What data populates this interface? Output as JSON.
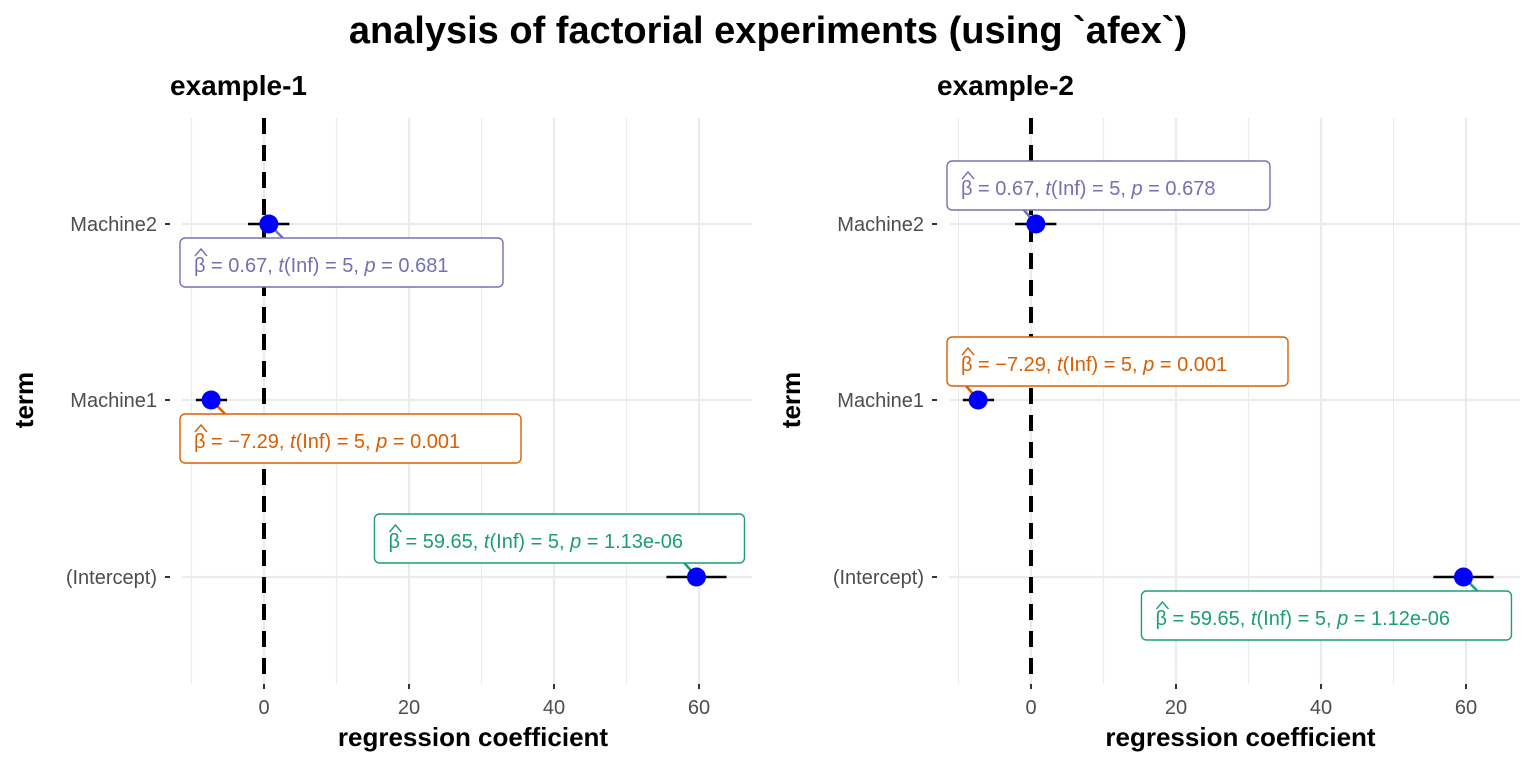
{
  "title": "analysis of factorial experiments (using `afex`)",
  "colors": {
    "point": "#0000ff",
    "grid": "#ebebeb",
    "zero_line": "#000000",
    "Machine2": "#7570b3",
    "Machine1": "#d95f02",
    "(Intercept)": "#1b9e77"
  },
  "chart_data": [
    {
      "type": "scatter",
      "title": "example-1",
      "xlabel": "regression coefficient",
      "ylabel": "term",
      "xlim": [
        -13,
        67
      ],
      "x_ticks": [
        0,
        20,
        40,
        60
      ],
      "categories": [
        "Machine2",
        "Machine1",
        "(Intercept)"
      ],
      "grid": true,
      "reference_line": 0,
      "points": [
        {
          "term": "Machine2",
          "estimate": 0.67,
          "ci_low": -2.2,
          "ci_high": 3.5,
          "label": {
            "beta": "0.67",
            "df": "Inf",
            "t": "5",
            "p": "0.681"
          },
          "label_pos": "below"
        },
        {
          "term": "Machine1",
          "estimate": -7.29,
          "ci_low": -9.4,
          "ci_high": -5.1,
          "label": {
            "beta": "−7.29",
            "df": "Inf",
            "t": "5",
            "p": "0.001"
          },
          "label_pos": "below"
        },
        {
          "term": "(Intercept)",
          "estimate": 59.65,
          "ci_low": 55.5,
          "ci_high": 63.8,
          "label": {
            "beta": "59.65",
            "df": "Inf",
            "t": "5",
            "p": "1.13e-06"
          },
          "label_pos": "above"
        }
      ]
    },
    {
      "type": "scatter",
      "title": "example-2",
      "xlabel": "regression coefficient",
      "ylabel": "term",
      "xlim": [
        -13,
        67
      ],
      "x_ticks": [
        0,
        20,
        40,
        60
      ],
      "categories": [
        "Machine2",
        "Machine1",
        "(Intercept)"
      ],
      "grid": true,
      "reference_line": 0,
      "points": [
        {
          "term": "Machine2",
          "estimate": 0.67,
          "ci_low": -2.2,
          "ci_high": 3.5,
          "label": {
            "beta": "0.67",
            "df": "Inf",
            "t": "5",
            "p": "0.678"
          },
          "label_pos": "above"
        },
        {
          "term": "Machine1",
          "estimate": -7.29,
          "ci_low": -9.4,
          "ci_high": -5.1,
          "label": {
            "beta": "−7.29",
            "df": "Inf",
            "t": "5",
            "p": "0.001"
          },
          "label_pos": "above"
        },
        {
          "term": "(Intercept)",
          "estimate": 59.65,
          "ci_low": 55.5,
          "ci_high": 63.8,
          "label": {
            "beta": "59.65",
            "df": "Inf",
            "t": "5",
            "p": "1.12e-06"
          },
          "label_pos": "below"
        }
      ]
    }
  ]
}
